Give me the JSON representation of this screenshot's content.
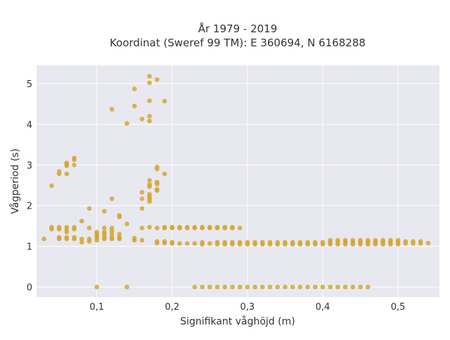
{
  "chart_data": {
    "type": "scatter",
    "title_line1": "År 1979 - 2019",
    "title_line2": "Koordinat (Sweref 99 TM): E 360694, N 6168288",
    "xlabel": "Signifikant våghöjd (m)",
    "ylabel": "Vågperiod (s)",
    "xlim": [
      0.02,
      0.555
    ],
    "ylim": [
      -0.25,
      5.45
    ],
    "xticks": [
      {
        "value": 0.1,
        "label": "0,1"
      },
      {
        "value": 0.2,
        "label": "0,2"
      },
      {
        "value": 0.3,
        "label": "0,3"
      },
      {
        "value": 0.4,
        "label": "0,4"
      },
      {
        "value": 0.5,
        "label": "0,5"
      }
    ],
    "yticks": [
      {
        "value": 0,
        "label": "0"
      },
      {
        "value": 1,
        "label": "1"
      },
      {
        "value": 2,
        "label": "2"
      },
      {
        "value": 3,
        "label": "3"
      },
      {
        "value": 4,
        "label": "4"
      },
      {
        "value": 5,
        "label": "5"
      }
    ],
    "grid": true,
    "legend": "none",
    "colors": {
      "marker": "#d4a52a",
      "plot_bg": "#e8e8f0",
      "grid": "#ffffff",
      "page_bg": "#ffffff",
      "text": "#333333"
    },
    "points": [
      {
        "x": 0.03,
        "y": 1.18
      },
      {
        "x": 0.04,
        "y": 1.42
      },
      {
        "x": 0.04,
        "y": 1.47
      },
      {
        "x": 0.04,
        "y": 2.49
      },
      {
        "x": 0.05,
        "y": 1.18
      },
      {
        "x": 0.05,
        "y": 1.22
      },
      {
        "x": 0.05,
        "y": 1.42
      },
      {
        "x": 0.05,
        "y": 1.47
      },
      {
        "x": 0.05,
        "y": 2.78
      },
      {
        "x": 0.05,
        "y": 2.84
      },
      {
        "x": 0.06,
        "y": 1.18
      },
      {
        "x": 0.06,
        "y": 1.22
      },
      {
        "x": 0.06,
        "y": 1.35
      },
      {
        "x": 0.06,
        "y": 1.42
      },
      {
        "x": 0.06,
        "y": 1.47
      },
      {
        "x": 0.06,
        "y": 2.78
      },
      {
        "x": 0.06,
        "y": 2.98
      },
      {
        "x": 0.06,
        "y": 3.02
      },
      {
        "x": 0.06,
        "y": 3.05
      },
      {
        "x": 0.07,
        "y": 1.18
      },
      {
        "x": 0.07,
        "y": 1.22
      },
      {
        "x": 0.07,
        "y": 1.42
      },
      {
        "x": 0.07,
        "y": 1.47
      },
      {
        "x": 0.07,
        "y": 3.0
      },
      {
        "x": 0.07,
        "y": 3.13
      },
      {
        "x": 0.07,
        "y": 3.17
      },
      {
        "x": 0.08,
        "y": 1.1
      },
      {
        "x": 0.08,
        "y": 1.18
      },
      {
        "x": 0.08,
        "y": 1.62
      },
      {
        "x": 0.09,
        "y": 1.12
      },
      {
        "x": 0.09,
        "y": 1.18
      },
      {
        "x": 0.09,
        "y": 1.45
      },
      {
        "x": 0.09,
        "y": 1.93
      },
      {
        "x": 0.1,
        "y": 0.0
      },
      {
        "x": 0.1,
        "y": 1.15
      },
      {
        "x": 0.1,
        "y": 1.2
      },
      {
        "x": 0.1,
        "y": 1.25
      },
      {
        "x": 0.1,
        "y": 1.3
      },
      {
        "x": 0.1,
        "y": 1.35
      },
      {
        "x": 0.11,
        "y": 1.18
      },
      {
        "x": 0.11,
        "y": 1.22
      },
      {
        "x": 0.11,
        "y": 1.3
      },
      {
        "x": 0.11,
        "y": 1.35
      },
      {
        "x": 0.11,
        "y": 1.45
      },
      {
        "x": 0.11,
        "y": 1.86
      },
      {
        "x": 0.12,
        "y": 1.18
      },
      {
        "x": 0.12,
        "y": 1.22
      },
      {
        "x": 0.12,
        "y": 1.3
      },
      {
        "x": 0.12,
        "y": 1.38
      },
      {
        "x": 0.12,
        "y": 1.45
      },
      {
        "x": 0.12,
        "y": 2.17
      },
      {
        "x": 0.12,
        "y": 4.37
      },
      {
        "x": 0.13,
        "y": 1.18
      },
      {
        "x": 0.13,
        "y": 1.22
      },
      {
        "x": 0.13,
        "y": 1.3
      },
      {
        "x": 0.13,
        "y": 1.72
      },
      {
        "x": 0.13,
        "y": 1.76
      },
      {
        "x": 0.14,
        "y": 0.0
      },
      {
        "x": 0.14,
        "y": 1.55
      },
      {
        "x": 0.14,
        "y": 4.02
      },
      {
        "x": 0.15,
        "y": 1.15
      },
      {
        "x": 0.15,
        "y": 1.2
      },
      {
        "x": 0.15,
        "y": 4.45
      },
      {
        "x": 0.15,
        "y": 4.87
      },
      {
        "x": 0.16,
        "y": 1.15
      },
      {
        "x": 0.16,
        "y": 1.45
      },
      {
        "x": 0.16,
        "y": 1.93
      },
      {
        "x": 0.16,
        "y": 2.17
      },
      {
        "x": 0.16,
        "y": 2.33
      },
      {
        "x": 0.16,
        "y": 4.13
      },
      {
        "x": 0.17,
        "y": 1.47
      },
      {
        "x": 0.17,
        "y": 2.1
      },
      {
        "x": 0.17,
        "y": 2.17
      },
      {
        "x": 0.17,
        "y": 2.22
      },
      {
        "x": 0.17,
        "y": 2.28
      },
      {
        "x": 0.17,
        "y": 2.47
      },
      {
        "x": 0.17,
        "y": 2.52
      },
      {
        "x": 0.17,
        "y": 2.62
      },
      {
        "x": 0.17,
        "y": 4.08
      },
      {
        "x": 0.17,
        "y": 4.2
      },
      {
        "x": 0.17,
        "y": 4.58
      },
      {
        "x": 0.17,
        "y": 5.02
      },
      {
        "x": 0.17,
        "y": 5.18
      },
      {
        "x": 0.18,
        "y": 1.08
      },
      {
        "x": 0.18,
        "y": 1.12
      },
      {
        "x": 0.18,
        "y": 1.45
      },
      {
        "x": 0.18,
        "y": 2.37
      },
      {
        "x": 0.18,
        "y": 2.4
      },
      {
        "x": 0.18,
        "y": 2.53
      },
      {
        "x": 0.18,
        "y": 2.58
      },
      {
        "x": 0.18,
        "y": 2.9
      },
      {
        "x": 0.18,
        "y": 2.95
      },
      {
        "x": 0.18,
        "y": 5.1
      },
      {
        "x": 0.19,
        "y": 1.08
      },
      {
        "x": 0.19,
        "y": 1.12
      },
      {
        "x": 0.19,
        "y": 1.45
      },
      {
        "x": 0.19,
        "y": 1.47
      },
      {
        "x": 0.19,
        "y": 2.78
      },
      {
        "x": 0.19,
        "y": 4.57
      },
      {
        "x": 0.2,
        "y": 1.07
      },
      {
        "x": 0.2,
        "y": 1.1
      },
      {
        "x": 0.2,
        "y": 1.45
      },
      {
        "x": 0.2,
        "y": 1.47
      },
      {
        "x": 0.21,
        "y": 1.07
      },
      {
        "x": 0.21,
        "y": 1.45
      },
      {
        "x": 0.21,
        "y": 1.47
      },
      {
        "x": 0.22,
        "y": 1.07
      },
      {
        "x": 0.22,
        "y": 1.45
      },
      {
        "x": 0.22,
        "y": 1.47
      },
      {
        "x": 0.23,
        "y": 0.0
      },
      {
        "x": 0.23,
        "y": 1.07
      },
      {
        "x": 0.23,
        "y": 1.45
      },
      {
        "x": 0.23,
        "y": 1.47
      },
      {
        "x": 0.24,
        "y": 0.0
      },
      {
        "x": 0.24,
        "y": 1.05
      },
      {
        "x": 0.24,
        "y": 1.1
      },
      {
        "x": 0.24,
        "y": 1.45
      },
      {
        "x": 0.24,
        "y": 1.47
      },
      {
        "x": 0.25,
        "y": 0.0
      },
      {
        "x": 0.25,
        "y": 1.07
      },
      {
        "x": 0.25,
        "y": 1.45
      },
      {
        "x": 0.25,
        "y": 1.47
      },
      {
        "x": 0.26,
        "y": 0.0
      },
      {
        "x": 0.26,
        "y": 1.05
      },
      {
        "x": 0.26,
        "y": 1.1
      },
      {
        "x": 0.26,
        "y": 1.45
      },
      {
        "x": 0.26,
        "y": 1.47
      },
      {
        "x": 0.27,
        "y": 0.0
      },
      {
        "x": 0.27,
        "y": 1.05
      },
      {
        "x": 0.27,
        "y": 1.1
      },
      {
        "x": 0.27,
        "y": 1.45
      },
      {
        "x": 0.27,
        "y": 1.47
      },
      {
        "x": 0.28,
        "y": 0.0
      },
      {
        "x": 0.28,
        "y": 1.05
      },
      {
        "x": 0.28,
        "y": 1.1
      },
      {
        "x": 0.28,
        "y": 1.45
      },
      {
        "x": 0.28,
        "y": 1.47
      },
      {
        "x": 0.29,
        "y": 0.0
      },
      {
        "x": 0.29,
        "y": 1.05
      },
      {
        "x": 0.29,
        "y": 1.1
      },
      {
        "x": 0.29,
        "y": 1.45
      },
      {
        "x": 0.3,
        "y": 0.0
      },
      {
        "x": 0.3,
        "y": 1.05
      },
      {
        "x": 0.3,
        "y": 1.1
      },
      {
        "x": 0.31,
        "y": 0.0
      },
      {
        "x": 0.31,
        "y": 1.05
      },
      {
        "x": 0.31,
        "y": 1.1
      },
      {
        "x": 0.32,
        "y": 0.0
      },
      {
        "x": 0.32,
        "y": 1.05
      },
      {
        "x": 0.32,
        "y": 1.1
      },
      {
        "x": 0.33,
        "y": 0.0
      },
      {
        "x": 0.33,
        "y": 1.05
      },
      {
        "x": 0.33,
        "y": 1.1
      },
      {
        "x": 0.34,
        "y": 0.0
      },
      {
        "x": 0.34,
        "y": 1.05
      },
      {
        "x": 0.34,
        "y": 1.1
      },
      {
        "x": 0.35,
        "y": 0.0
      },
      {
        "x": 0.35,
        "y": 1.05
      },
      {
        "x": 0.35,
        "y": 1.1
      },
      {
        "x": 0.36,
        "y": 0.0
      },
      {
        "x": 0.36,
        "y": 1.05
      },
      {
        "x": 0.36,
        "y": 1.1
      },
      {
        "x": 0.37,
        "y": 0.0
      },
      {
        "x": 0.37,
        "y": 1.05
      },
      {
        "x": 0.37,
        "y": 1.1
      },
      {
        "x": 0.38,
        "y": 0.0
      },
      {
        "x": 0.38,
        "y": 1.05
      },
      {
        "x": 0.38,
        "y": 1.1
      },
      {
        "x": 0.39,
        "y": 0.0
      },
      {
        "x": 0.39,
        "y": 1.05
      },
      {
        "x": 0.39,
        "y": 1.1
      },
      {
        "x": 0.4,
        "y": 0.0
      },
      {
        "x": 0.4,
        "y": 1.05
      },
      {
        "x": 0.4,
        "y": 1.1
      },
      {
        "x": 0.41,
        "y": 0.0
      },
      {
        "x": 0.41,
        "y": 1.05
      },
      {
        "x": 0.41,
        "y": 1.1
      },
      {
        "x": 0.41,
        "y": 1.15
      },
      {
        "x": 0.42,
        "y": 0.0
      },
      {
        "x": 0.42,
        "y": 1.05
      },
      {
        "x": 0.42,
        "y": 1.1
      },
      {
        "x": 0.42,
        "y": 1.15
      },
      {
        "x": 0.43,
        "y": 0.0
      },
      {
        "x": 0.43,
        "y": 1.05
      },
      {
        "x": 0.43,
        "y": 1.1
      },
      {
        "x": 0.43,
        "y": 1.15
      },
      {
        "x": 0.44,
        "y": 0.0
      },
      {
        "x": 0.44,
        "y": 1.05
      },
      {
        "x": 0.44,
        "y": 1.1
      },
      {
        "x": 0.44,
        "y": 1.15
      },
      {
        "x": 0.45,
        "y": 0.0
      },
      {
        "x": 0.45,
        "y": 1.05
      },
      {
        "x": 0.45,
        "y": 1.1
      },
      {
        "x": 0.45,
        "y": 1.15
      },
      {
        "x": 0.46,
        "y": 0.0
      },
      {
        "x": 0.46,
        "y": 1.05
      },
      {
        "x": 0.46,
        "y": 1.1
      },
      {
        "x": 0.46,
        "y": 1.15
      },
      {
        "x": 0.47,
        "y": 1.05
      },
      {
        "x": 0.47,
        "y": 1.1
      },
      {
        "x": 0.47,
        "y": 1.15
      },
      {
        "x": 0.48,
        "y": 1.05
      },
      {
        "x": 0.48,
        "y": 1.1
      },
      {
        "x": 0.48,
        "y": 1.15
      },
      {
        "x": 0.49,
        "y": 1.05
      },
      {
        "x": 0.49,
        "y": 1.1
      },
      {
        "x": 0.49,
        "y": 1.15
      },
      {
        "x": 0.5,
        "y": 1.05
      },
      {
        "x": 0.5,
        "y": 1.1
      },
      {
        "x": 0.5,
        "y": 1.15
      },
      {
        "x": 0.51,
        "y": 1.07
      },
      {
        "x": 0.51,
        "y": 1.12
      },
      {
        "x": 0.52,
        "y": 1.07
      },
      {
        "x": 0.52,
        "y": 1.12
      },
      {
        "x": 0.53,
        "y": 1.07
      },
      {
        "x": 0.53,
        "y": 1.12
      },
      {
        "x": 0.54,
        "y": 1.08
      }
    ]
  }
}
